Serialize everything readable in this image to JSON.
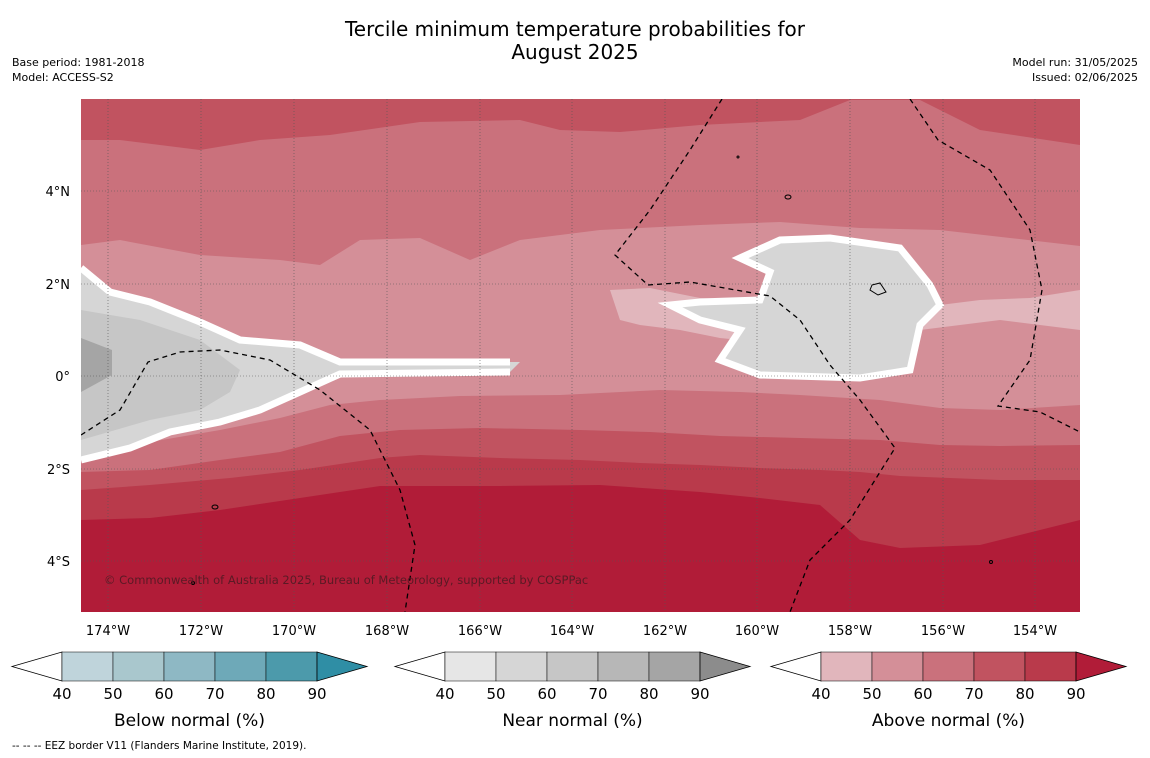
{
  "title": {
    "line1": "Tercile minimum temperature probabilities for",
    "line2": "August 2025"
  },
  "meta_left": {
    "base_period": "Base period: 1981-2018",
    "model": "Model: ACCESS-S2"
  },
  "meta_right": {
    "model_run": "Model run: 31/05/2025",
    "issued": "Issued: 02/06/2025"
  },
  "map": {
    "copyright": "© Commonwealth of Australia 2025, Bureau of Meteorology, supported by COSPPac",
    "x_ticks": [
      "174°W",
      "172°W",
      "170°W",
      "168°W",
      "166°W",
      "164°W",
      "162°W",
      "160°W",
      "158°W",
      "156°W",
      "154°W"
    ],
    "y_ticks": [
      "4°N",
      "2°N",
      "0°",
      "2°S",
      "4°S"
    ]
  },
  "colorbars": [
    {
      "name": "below",
      "label": "Below normal (%)",
      "ticks": [
        "40",
        "50",
        "60",
        "70",
        "80",
        "90"
      ],
      "colors": [
        "#bfd4db",
        "#a9c7cd",
        "#8eb8c4",
        "#6ea9b8",
        "#4c9aab",
        "#2f8ea5"
      ]
    },
    {
      "name": "near",
      "label": "Near normal (%)",
      "ticks": [
        "40",
        "50",
        "60",
        "70",
        "80",
        "90"
      ],
      "colors": [
        "#e6e6e6",
        "#d6d6d6",
        "#c6c6c6",
        "#b7b7b7",
        "#a5a5a5",
        "#8c8c8c"
      ]
    },
    {
      "name": "above",
      "label": "Above normal (%)",
      "ticks": [
        "40",
        "50",
        "60",
        "70",
        "80",
        "90"
      ],
      "colors": [
        "#e1b6bc",
        "#d48f98",
        "#ca717c",
        "#c15360",
        "#b93a4b",
        "#b11c38"
      ]
    }
  ],
  "footer": "--  --  -- EEZ border V11 (Flanders Marine Institute, 2019)."
}
